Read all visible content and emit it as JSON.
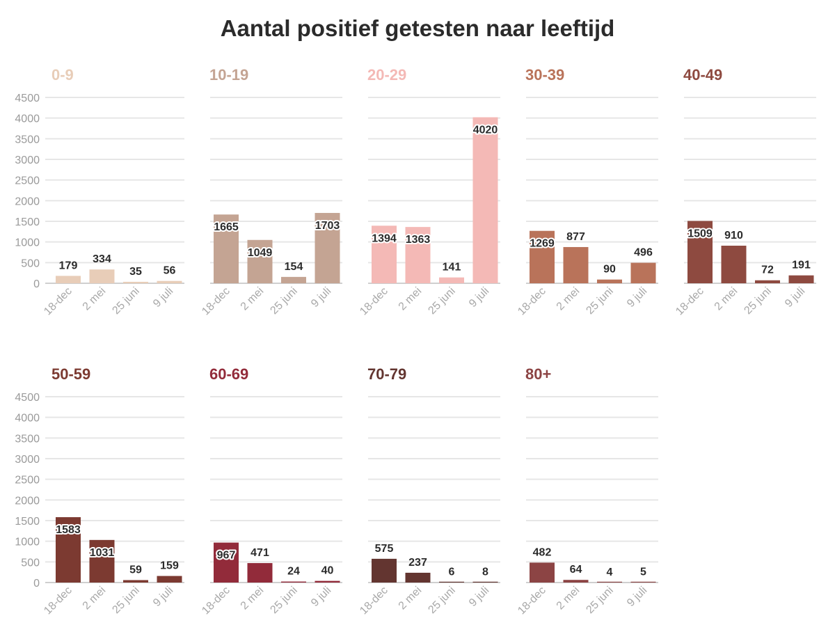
{
  "page": {
    "title": "Aantal positief getesten naar leeftijd"
  },
  "chart_data": {
    "type": "bar",
    "title": "Aantal positief getesten naar leeftijd",
    "categories": [
      "18-dec",
      "2 mei",
      "25 juni",
      "9 juli"
    ],
    "yticks": [
      0,
      500,
      1000,
      1500,
      2000,
      2500,
      3000,
      3500,
      4000,
      4500
    ],
    "ylim": [
      0,
      4500
    ],
    "grid": true,
    "panels": [
      {
        "name": "0-9",
        "color": "#e8cdb8",
        "values": [
          179,
          334,
          35,
          56
        ]
      },
      {
        "name": "10-19",
        "color": "#c4a493",
        "values": [
          1665,
          1049,
          154,
          1703
        ]
      },
      {
        "name": "20-29",
        "color": "#f4b9b6",
        "values": [
          1394,
          1363,
          141,
          4020
        ]
      },
      {
        "name": "30-39",
        "color": "#b9735a",
        "values": [
          1269,
          877,
          90,
          496
        ]
      },
      {
        "name": "40-49",
        "color": "#8e4a40",
        "values": [
          1509,
          910,
          72,
          191
        ]
      },
      {
        "name": "50-59",
        "color": "#7c3a31",
        "values": [
          1583,
          1031,
          59,
          159
        ]
      },
      {
        "name": "60-69",
        "color": "#922b3a",
        "values": [
          967,
          471,
          24,
          40
        ]
      },
      {
        "name": "70-79",
        "color": "#633530",
        "values": [
          575,
          237,
          6,
          8
        ]
      },
      {
        "name": "80+",
        "color": "#8c4444",
        "values": [
          482,
          64,
          4,
          5
        ]
      }
    ]
  }
}
